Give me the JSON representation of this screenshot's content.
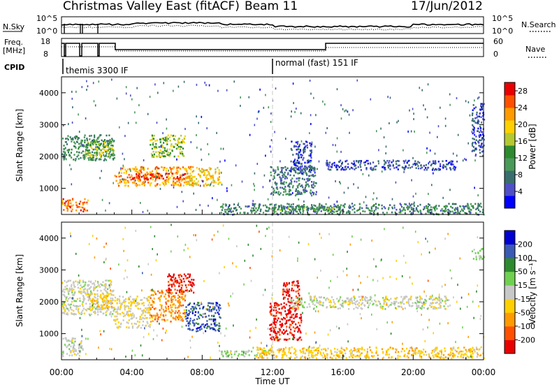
{
  "header": {
    "station": "Christmas Valley East (fitACF)",
    "beam": "Beam 11",
    "date": "17/Jun/2012"
  },
  "status_panels": {
    "nsky": {
      "label": "N.Sky",
      "left_ticks": [
        "10^5",
        "10^0"
      ],
      "right_ticks": [
        "10^5",
        "10^0"
      ],
      "right_label": "N.Search"
    },
    "freq": {
      "label_lines": [
        "Freq.",
        "[MHz]"
      ],
      "left_ticks": [
        "18",
        "8"
      ],
      "right_ticks": [
        "60",
        "0"
      ],
      "right_label": "Nave"
    },
    "cpid": {
      "label": "CPID",
      "modes": [
        {
          "name": "themis 3300 IF",
          "start_hour": 0
        },
        {
          "name": "normal (fast) 151 IF",
          "start_hour": 12
        }
      ]
    }
  },
  "axes": {
    "x_label": "Time UT",
    "x_ticks": [
      "00:00",
      "04:00",
      "08:00",
      "12:00",
      "16:00",
      "20:00",
      "00:00"
    ],
    "x_range_hours": [
      0,
      24
    ],
    "y_label": "Slant Range [km]",
    "y_ticks": [
      "1000",
      "2000",
      "3000",
      "4000"
    ],
    "y_range_km": [
      180,
      4500
    ],
    "dashed_marker_hour": 12
  },
  "colors": {
    "power_scale": [
      "#0000ff",
      "#4f4fc8",
      "#3a6e6e",
      "#4a9a5a",
      "#2e8a2e",
      "#b4c832",
      "#ffd000",
      "#ff9a00",
      "#ff5000",
      "#e80000"
    ],
    "velocity_scale": [
      "#e80000",
      "#ff5000",
      "#ff9a00",
      "#ffd000",
      "#c8c8c8",
      "#70d050",
      "#2e8a2e",
      "#3a5ab4",
      "#0000d0"
    ]
  },
  "chart_data": [
    {
      "type": "heatmap",
      "name": "power",
      "colorbar_label": "Power [dB]",
      "colorbar_ticks": [
        "4",
        "8",
        "12",
        "16",
        "20",
        "24",
        "28"
      ],
      "value_range": [
        0,
        30
      ],
      "x_unit": "hours UT",
      "y_unit": "km",
      "regions": [
        {
          "t0": 0.0,
          "t1": 3.0,
          "r0": 1900,
          "r1": 2700,
          "value": 10
        },
        {
          "t0": 1.2,
          "t1": 3.0,
          "r0": 2000,
          "r1": 2500,
          "value": 16
        },
        {
          "t0": 3.0,
          "t1": 7.5,
          "r0": 1100,
          "r1": 1700,
          "value": 22
        },
        {
          "t0": 4.0,
          "t1": 7.0,
          "r0": 1300,
          "r1": 1500,
          "value": 27
        },
        {
          "t0": 5.0,
          "t1": 7.0,
          "r0": 2000,
          "r1": 2700,
          "value": 16
        },
        {
          "t0": 7.0,
          "t1": 9.0,
          "r0": 1100,
          "r1": 1700,
          "value": 20
        },
        {
          "t0": 0.0,
          "t1": 1.5,
          "r0": 300,
          "r1": 700,
          "value": 24
        },
        {
          "t0": 11.8,
          "t1": 14.5,
          "r0": 800,
          "r1": 1700,
          "value": 8
        },
        {
          "t0": 13.0,
          "t1": 14.2,
          "r0": 1500,
          "r1": 2500,
          "value": 5
        },
        {
          "t0": 15.0,
          "t1": 22.5,
          "r0": 1600,
          "r1": 1900,
          "value": 5
        },
        {
          "t0": 9.0,
          "t1": 24.0,
          "r0": 200,
          "r1": 550,
          "value": 9
        },
        {
          "t0": 11.5,
          "t1": 16.0,
          "r0": 300,
          "r1": 450,
          "value": 12
        },
        {
          "t0": 23.3,
          "t1": 24.0,
          "r0": 2000,
          "r1": 3700,
          "value": 5
        }
      ]
    },
    {
      "type": "heatmap",
      "name": "velocity",
      "colorbar_label": "Velocity [m s⁻¹]",
      "colorbar_ticks": [
        "200",
        "100",
        "50",
        "15",
        "-15",
        "-50",
        "-100",
        "-200"
      ],
      "value_range": [
        -250,
        250
      ],
      "x_unit": "hours UT",
      "y_unit": "km",
      "regions": [
        {
          "t0": 0.0,
          "t1": 3.0,
          "r0": 1600,
          "r1": 2700,
          "value": 0
        },
        {
          "t0": 1.5,
          "t1": 3.0,
          "r0": 1800,
          "r1": 2300,
          "value": -60
        },
        {
          "t0": 3.0,
          "t1": 5.0,
          "r0": 1200,
          "r1": 2200,
          "value": -30
        },
        {
          "t0": 5.0,
          "t1": 7.0,
          "r0": 1400,
          "r1": 2400,
          "value": -120
        },
        {
          "t0": 7.0,
          "t1": 9.0,
          "r0": 1100,
          "r1": 2000,
          "value": 170
        },
        {
          "t0": 6.0,
          "t1": 7.5,
          "r0": 2300,
          "r1": 2900,
          "value": -220
        },
        {
          "t0": 0.0,
          "t1": 1.2,
          "r0": 300,
          "r1": 900,
          "value": 0
        },
        {
          "t0": 11.8,
          "t1": 13.6,
          "r0": 800,
          "r1": 2000,
          "value": -220
        },
        {
          "t0": 12.5,
          "t1": 13.5,
          "r0": 2000,
          "r1": 2700,
          "value": -220
        },
        {
          "t0": 9.0,
          "t1": 12.0,
          "r0": 300,
          "r1": 500,
          "value": 40
        },
        {
          "t0": 11.0,
          "t1": 24.0,
          "r0": 250,
          "r1": 600,
          "value": -60
        },
        {
          "t0": 13.0,
          "t1": 22.0,
          "r0": 1800,
          "r1": 2200,
          "value": 0
        },
        {
          "t0": 23.3,
          "t1": 24.0,
          "r0": 3300,
          "r1": 3700,
          "value": 40
        }
      ]
    }
  ]
}
